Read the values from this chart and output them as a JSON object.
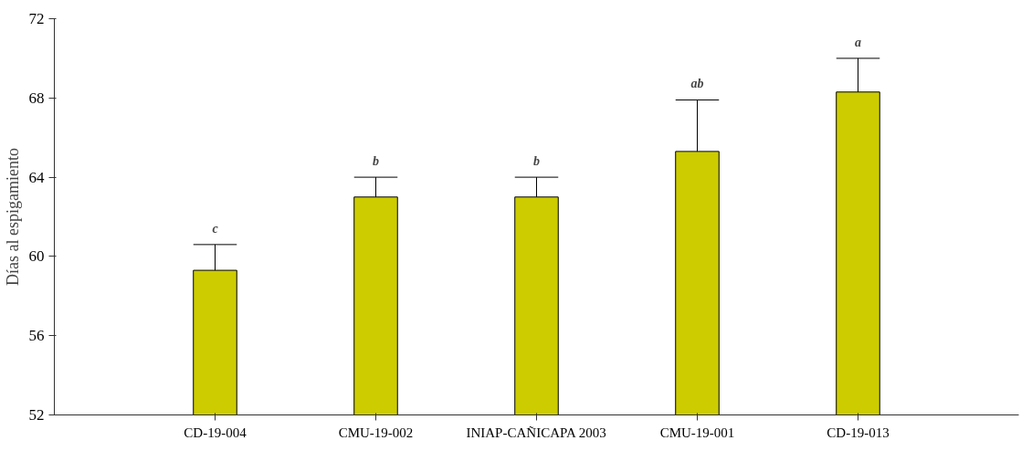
{
  "chart_data": {
    "type": "bar",
    "ylabel": "Días al espigamiento",
    "categories": [
      "CD-19-004",
      "CMU-19-002",
      "INIAP-CAÑICAPA 2003",
      "CMU-19-001",
      "CD-19-013"
    ],
    "values": [
      59.3,
      63.0,
      63.0,
      65.3,
      68.3
    ],
    "errors": [
      [
        59.3,
        60.6
      ],
      [
        63.0,
        64.0
      ],
      [
        63.0,
        64.0
      ],
      [
        65.3,
        67.9
      ],
      [
        68.3,
        70.0
      ]
    ],
    "color": "#cccc00",
    "ylim": [
      52,
      72
    ],
    "yticks": [
      52,
      56,
      60,
      64,
      68,
      72
    ],
    "grid": false,
    "annotations": [
      {
        "text": "c",
        "x": "CD-19-004",
        "y": 60.6
      },
      {
        "text": "b",
        "x": "CMU-19-002",
        "y": 64.0
      },
      {
        "text": "b",
        "x": "INIAP-CAÑICAPA 2003",
        "y": 64.0
      },
      {
        "text": "ab",
        "x": "CMU-19-001",
        "y": 67.9
      },
      {
        "text": "a",
        "x": "CD-19-013",
        "y": 70.0
      }
    ]
  }
}
